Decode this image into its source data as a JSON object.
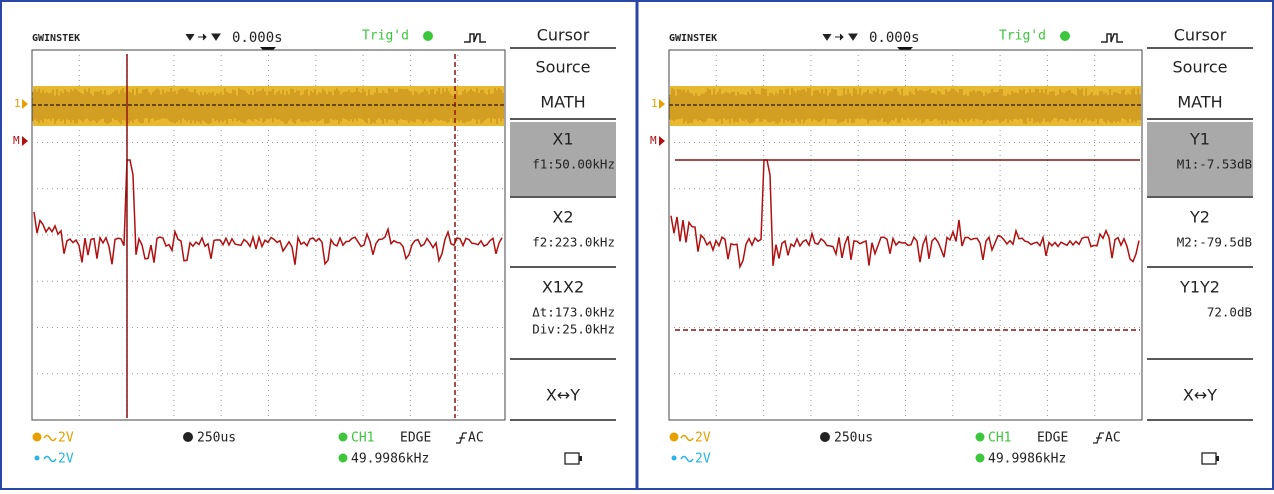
{
  "screens": [
    {
      "brand": "GWINSTEK",
      "trigger_position": "0.000s",
      "trigger_status": "Trig'd",
      "ch1_marker": "1",
      "math_marker": "M",
      "menu": {
        "title": "Cursor",
        "source_label": "Source",
        "source_value": "MATH",
        "items": [
          {
            "label": "X1",
            "lines": [
              "f1:50.00kHz"
            ]
          },
          {
            "label": "X2",
            "lines": [
              "f2:223.0kHz"
            ]
          },
          {
            "label": "X1X2",
            "lines": [
              "Δt:173.0kHz",
              "Div:25.0kHz"
            ]
          },
          {
            "label": "X↔Y",
            "lines": []
          }
        ]
      },
      "status": {
        "ch1_scale": "2V",
        "ch2_scale": "2V",
        "timebase": "250us",
        "trigger_source": "CH1",
        "trigger_type": "EDGE",
        "coupling": "AC",
        "frequency": "49.9986kHz"
      }
    },
    {
      "brand": "GWINSTEK",
      "trigger_position": "0.000s",
      "trigger_status": "Trig'd",
      "ch1_marker": "1",
      "math_marker": "M",
      "menu": {
        "title": "Cursor",
        "source_label": "Source",
        "source_value": "MATH",
        "items": [
          {
            "label": "Y1",
            "lines": [
              "M1:-7.53dB"
            ]
          },
          {
            "label": "Y2",
            "lines": [
              "M2:-79.5dB"
            ]
          },
          {
            "label": "Y1Y2",
            "lines": [
              "72.0dB"
            ]
          },
          {
            "label": "X↔Y",
            "lines": []
          }
        ]
      },
      "status": {
        "ch1_scale": "2V",
        "ch2_scale": "2V",
        "timebase": "250us",
        "trigger_source": "CH1",
        "trigger_type": "EDGE",
        "coupling": "AC",
        "frequency": "49.9986kHz"
      }
    }
  ]
}
